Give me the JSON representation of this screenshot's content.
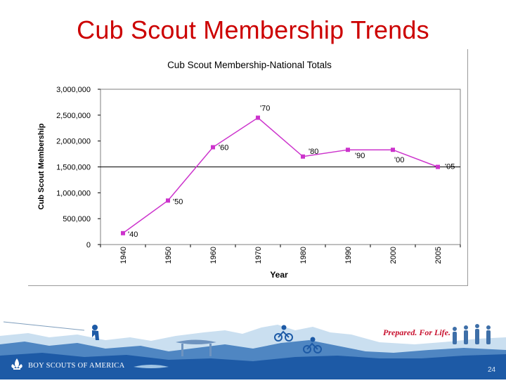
{
  "slide": {
    "title": "Cub Scout Membership Trends",
    "tagline": "Prepared. For Life.",
    "org_name": "BOY SCOUTS OF AMERICA",
    "page_number": "24"
  },
  "colors": {
    "title": "#cc0000",
    "series": "#cc33cc",
    "footer_blue": "#1d5aa6",
    "tagline": "#c8102e"
  },
  "chart_data": {
    "type": "line",
    "title": "Cub Scout Membership-National Totals",
    "xlabel": "Year",
    "ylabel": "Cub Scout Membership",
    "categories": [
      "1940",
      "1950",
      "1960",
      "1970",
      "1980",
      "1990",
      "2000",
      "2005"
    ],
    "series": [
      {
        "values": [
          220000,
          850000,
          1880000,
          2450000,
          1700000,
          1830000,
          1830000,
          1500000
        ],
        "point_labels": [
          "'40",
          "'50",
          "'60",
          "'70",
          "'80",
          "'90",
          "'00",
          "'05"
        ]
      }
    ],
    "ylim": [
      0,
      3000000
    ],
    "yticks": [
      0,
      500000,
      1000000,
      1500000,
      2000000,
      2500000,
      3000000
    ],
    "ytick_labels": [
      "0",
      "500,000",
      "1,000,000",
      "1,500,000",
      "2,000,000",
      "2,500,000",
      "3,000,000"
    ],
    "reference_line": 1500000,
    "grid": false,
    "legend": "none"
  }
}
